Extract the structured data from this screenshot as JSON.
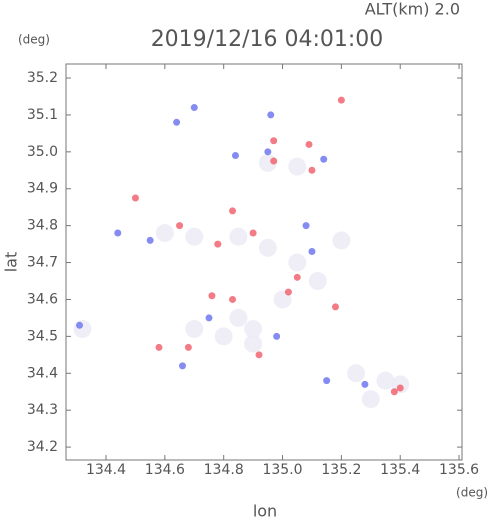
{
  "chart_data": {
    "type": "scatter",
    "title": "2019/12/16 04:01:00",
    "subtitle": "ALT(km) 2.0",
    "ylabel": "lat",
    "ylabel_unit": "(deg)",
    "xlabel": "lon",
    "xlabel_unit": "(deg)",
    "xlim": [
      134.264,
      135.61
    ],
    "ylim": [
      34.165,
      35.238
    ],
    "xticks": [
      134.4,
      134.6,
      134.8,
      {
        "value": 135.0,
        "label": "135.0"
      },
      135.2,
      135.4,
      135.6
    ],
    "yticks": [
      34.2,
      34.3,
      34.4,
      34.5,
      34.6,
      34.7,
      34.8,
      34.9,
      {
        "value": 35.0,
        "label": "35.0"
      },
      35.1,
      35.2
    ],
    "series": [
      {
        "color": "#ecebf6",
        "x": [
          134.7,
          134.85,
          134.95,
          135.2,
          135.05,
          135.0,
          134.85,
          134.8,
          134.9,
          135.3,
          135.35,
          135.25,
          135.4,
          134.95,
          135.05,
          134.9,
          134.7,
          134.6,
          135.12,
          134.32
        ],
        "values": [
          34.77,
          34.77,
          34.74,
          34.76,
          34.7,
          34.6,
          34.55,
          34.5,
          34.52,
          34.33,
          34.38,
          34.4,
          34.37,
          34.97,
          34.96,
          34.48,
          34.52,
          34.78,
          34.65,
          34.52
        ]
      },
      {
        "color": "#7078ee",
        "x": [
          134.64,
          134.7,
          134.84,
          134.95,
          135.14,
          134.44,
          134.55,
          135.1,
          134.66,
          134.75,
          134.98,
          135.28,
          135.15,
          134.31,
          134.96,
          135.08
        ],
        "values": [
          35.08,
          35.12,
          34.99,
          35.0,
          34.98,
          34.78,
          34.76,
          34.73,
          34.42,
          34.55,
          34.5,
          34.37,
          34.38,
          34.53,
          35.1,
          34.8
        ]
      },
      {
        "color": "#f06470",
        "x": [
          134.5,
          134.97,
          135.1,
          134.83,
          134.65,
          134.9,
          134.78,
          135.02,
          135.05,
          135.18,
          135.38,
          135.4,
          134.68,
          134.92,
          134.83,
          135.2,
          135.09,
          134.97,
          134.76,
          134.58
        ],
        "values": [
          34.875,
          34.975,
          34.95,
          34.84,
          34.8,
          34.78,
          34.75,
          34.62,
          34.66,
          34.58,
          34.35,
          34.36,
          34.47,
          34.45,
          34.6,
          35.14,
          35.02,
          35.03,
          34.61,
          34.47
        ]
      }
    ]
  }
}
